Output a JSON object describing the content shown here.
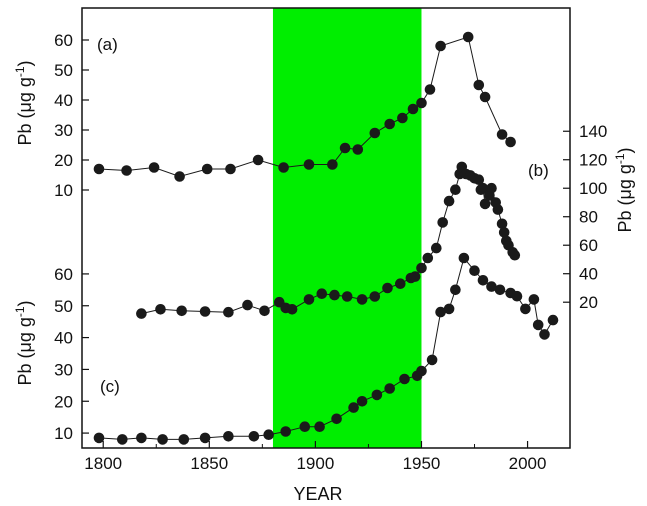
{
  "chart_data": {
    "type": "scatter",
    "xlabel": "YEAR",
    "xlim": [
      1790,
      2020
    ],
    "x_ticks": [
      1800,
      1850,
      1900,
      1950,
      2000
    ],
    "highlight": {
      "x_start": 1880,
      "x_end": 1950,
      "color": "#00ee00"
    },
    "marker_color": "#1a1a1a",
    "panels": [
      {
        "label": "(a)",
        "ylabel_main": "Pb (μg g",
        "ylabel_sup": "-1",
        "ylabel_tail": ")",
        "axis": "left",
        "ylim": [
          5,
          64
        ],
        "y_ticks": [
          10,
          20,
          30,
          40,
          50,
          60
        ],
        "points": [
          [
            1798,
            17
          ],
          [
            1811,
            16.5
          ],
          [
            1824,
            17.5
          ],
          [
            1836,
            14.5
          ],
          [
            1849,
            17
          ],
          [
            1860,
            17
          ],
          [
            1873,
            20
          ],
          [
            1885,
            17.5
          ],
          [
            1897,
            18.5
          ],
          [
            1908,
            18.5
          ],
          [
            1914,
            24
          ],
          [
            1920,
            23.5
          ],
          [
            1928,
            29
          ],
          [
            1935,
            32
          ],
          [
            1941,
            34
          ],
          [
            1946,
            37
          ],
          [
            1950,
            39
          ],
          [
            1954,
            43.5
          ],
          [
            1959,
            58
          ],
          [
            1972,
            61
          ],
          [
            1977,
            45
          ],
          [
            1980,
            41
          ],
          [
            1988,
            28.5
          ],
          [
            1992,
            26
          ]
        ]
      },
      {
        "label": "(b)",
        "ylabel_main": "Pb (μg g",
        "ylabel_sup": "-1",
        "ylabel_tail": ")",
        "axis": "right",
        "ylim": [
          4,
          150
        ],
        "y_ticks": [
          20,
          40,
          60,
          80,
          100,
          120,
          140
        ],
        "points": [
          [
            1818,
            12
          ],
          [
            1827,
            15
          ],
          [
            1837,
            14
          ],
          [
            1848,
            13.5
          ],
          [
            1859,
            13
          ],
          [
            1868,
            18
          ],
          [
            1876,
            14
          ],
          [
            1883,
            20
          ],
          [
            1886,
            16
          ],
          [
            1889,
            15
          ],
          [
            1897,
            22
          ],
          [
            1903,
            26
          ],
          [
            1909,
            25
          ],
          [
            1915,
            24
          ],
          [
            1922,
            22
          ],
          [
            1928,
            24
          ],
          [
            1934,
            30
          ],
          [
            1940,
            33
          ],
          [
            1945,
            37
          ],
          [
            1947,
            38
          ],
          [
            1950,
            44
          ],
          [
            1953,
            51
          ],
          [
            1957,
            58
          ],
          [
            1960,
            76
          ],
          [
            1963,
            91
          ],
          [
            1966,
            99
          ],
          [
            1968,
            110
          ],
          [
            1969,
            115
          ],
          [
            1971,
            110
          ],
          [
            1973,
            109
          ],
          [
            1975,
            107
          ],
          [
            1977,
            106
          ],
          [
            1978,
            99
          ],
          [
            1979,
            100
          ],
          [
            1980,
            89
          ],
          [
            1982,
            95
          ],
          [
            1983,
            100
          ],
          [
            1985,
            90
          ],
          [
            1986,
            85
          ],
          [
            1988,
            75
          ],
          [
            1989,
            69
          ],
          [
            1990,
            63
          ],
          [
            1991,
            60
          ],
          [
            1993,
            55
          ],
          [
            1994,
            53
          ]
        ]
      },
      {
        "label": "(c)",
        "ylabel_main": "Pb (μg g",
        "ylabel_sup": "-1",
        "ylabel_tail": ")",
        "axis": "left",
        "ylim": [
          5,
          65
        ],
        "y_ticks": [
          10,
          20,
          30,
          40,
          50,
          60
        ],
        "points": [
          [
            1798,
            8.5
          ],
          [
            1809,
            8
          ],
          [
            1818,
            8.5
          ],
          [
            1828,
            8
          ],
          [
            1838,
            8
          ],
          [
            1848,
            8.5
          ],
          [
            1859,
            9
          ],
          [
            1871,
            9
          ],
          [
            1878,
            9.5
          ],
          [
            1886,
            10.5
          ],
          [
            1895,
            12
          ],
          [
            1902,
            12
          ],
          [
            1910,
            14.5
          ],
          [
            1918,
            18
          ],
          [
            1922,
            20
          ],
          [
            1929,
            22
          ],
          [
            1935,
            24
          ],
          [
            1942,
            27
          ],
          [
            1948,
            28
          ],
          [
            1950,
            29.5
          ],
          [
            1955,
            33
          ],
          [
            1959,
            48
          ],
          [
            1963,
            49
          ],
          [
            1966,
            55
          ],
          [
            1970,
            65
          ],
          [
            1975,
            61
          ],
          [
            1979,
            58
          ],
          [
            1983,
            56
          ],
          [
            1987,
            55
          ],
          [
            1992,
            54
          ],
          [
            1995,
            53
          ],
          [
            1999,
            49
          ],
          [
            2003,
            52
          ],
          [
            2005,
            44
          ],
          [
            2008,
            41
          ],
          [
            2012,
            45.5
          ]
        ]
      }
    ]
  }
}
